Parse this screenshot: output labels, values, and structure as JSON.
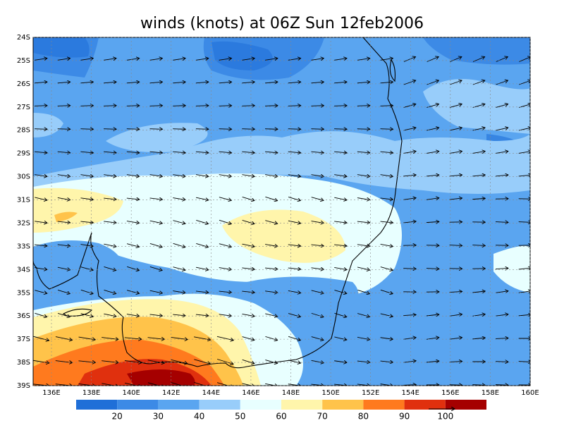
{
  "map": {
    "title": "winds (knots) at 06Z Sun 12feb2006",
    "lat_labels": [
      "24S",
      "25S",
      "26S",
      "27S",
      "28S",
      "29S",
      "30S",
      "31S",
      "32S",
      "33S",
      "34S",
      "35S",
      "36S",
      "37S",
      "38S",
      "39S"
    ],
    "lon_labels": [
      "136E",
      "138E",
      "140E",
      "142E",
      "144E",
      "146E",
      "148E",
      "150E",
      "152E",
      "154E",
      "156E",
      "158E",
      "160E"
    ]
  },
  "colorbar": {
    "colors": [
      "#1f6fd8",
      "#3c8ae6",
      "#5aa5f0",
      "#98cdfa",
      "#e8ffff",
      "#fff5ab",
      "#ffc34a",
      "#ff7a1e",
      "#e0300e",
      "#a50000"
    ],
    "labels": [
      "20",
      "30",
      "40",
      "50",
      "60",
      "70",
      "80",
      "90",
      "100"
    ]
  }
}
